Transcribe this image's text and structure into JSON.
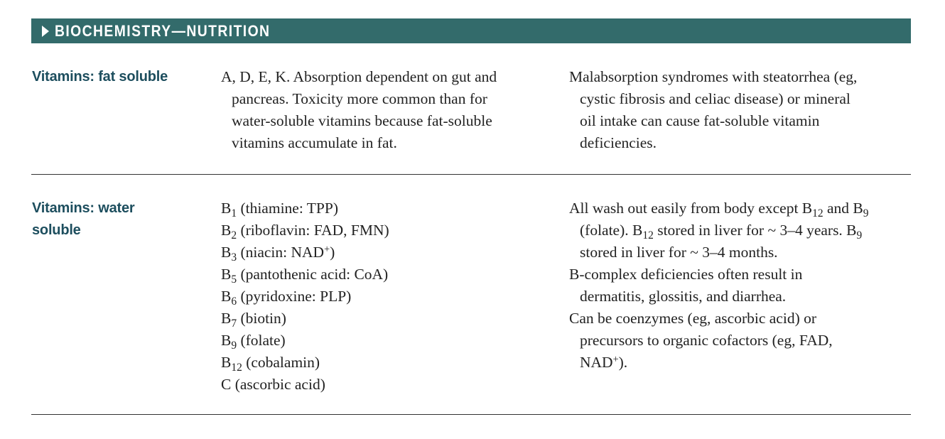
{
  "header": {
    "title": "BIOCHEMISTRY—NUTRITION",
    "background_color": "#336b6b",
    "arrow_icon": "right-triangle-icon"
  },
  "label_color": "#1d4e5e",
  "rows": [
    {
      "label_lines": [
        "Vitamins: fat soluble"
      ],
      "mid_lines": [
        "A, D, E, K. Absorption dependent on gut and",
        "pancreas. Toxicity more common than for",
        "water-soluble vitamins because fat-soluble",
        "vitamins accumulate in fat."
      ],
      "right_lines": [
        "Malabsorption syndromes with steatorrhea (eg,",
        "cystic fibrosis and celiac disease) or mineral",
        "oil intake can cause fat-soluble vitamin",
        "deficiencies."
      ]
    },
    {
      "label_lines": [
        "Vitamins: water",
        "soluble"
      ],
      "vitamin_list": [
        {
          "base": "B",
          "sub": "1",
          "desc": " (thiamine: TPP)"
        },
        {
          "base": "B",
          "sub": "2",
          "desc": " (riboflavin: FAD, FMN)"
        },
        {
          "base": "B",
          "sub": "3",
          "desc": " (niacin: NAD",
          "sup": "+",
          "tail": ")"
        },
        {
          "base": "B",
          "sub": "5",
          "desc": " (pantothenic acid: CoA)"
        },
        {
          "base": "B",
          "sub": "6",
          "desc": " (pyridoxine: PLP)"
        },
        {
          "base": "B",
          "sub": "7",
          "desc": " (biotin)"
        },
        {
          "base": "B",
          "sub": "9",
          "desc": " (folate)"
        },
        {
          "base": "B",
          "sub": "12",
          "desc": " (cobalamin)"
        },
        {
          "base": "C",
          "sub": "",
          "desc": " (ascorbic acid)"
        }
      ],
      "right_paragraphs": {
        "p1": {
          "l1_a": "All wash out easily from body except B",
          "l1_sub1": "12",
          "l1_b": " and B",
          "l1_sub2": "9",
          "l2_a": "(folate). B",
          "l2_sub1": "12",
          "l2_b": " stored in liver for ~ 3–4 years. B",
          "l2_sub2": "9",
          "l3": "stored in liver for ~ 3–4 months."
        },
        "p2": {
          "l1": "B-complex deficiencies often result in",
          "l2": "dermatitis, glossitis, and diarrhea."
        },
        "p3": {
          "l1": "Can be coenzymes (eg, ascorbic acid) or",
          "l2": "precursors to organic cofactors (eg, FAD,",
          "l3_a": "NAD",
          "l3_sup": "+",
          "l3_b": ")."
        }
      }
    }
  ]
}
